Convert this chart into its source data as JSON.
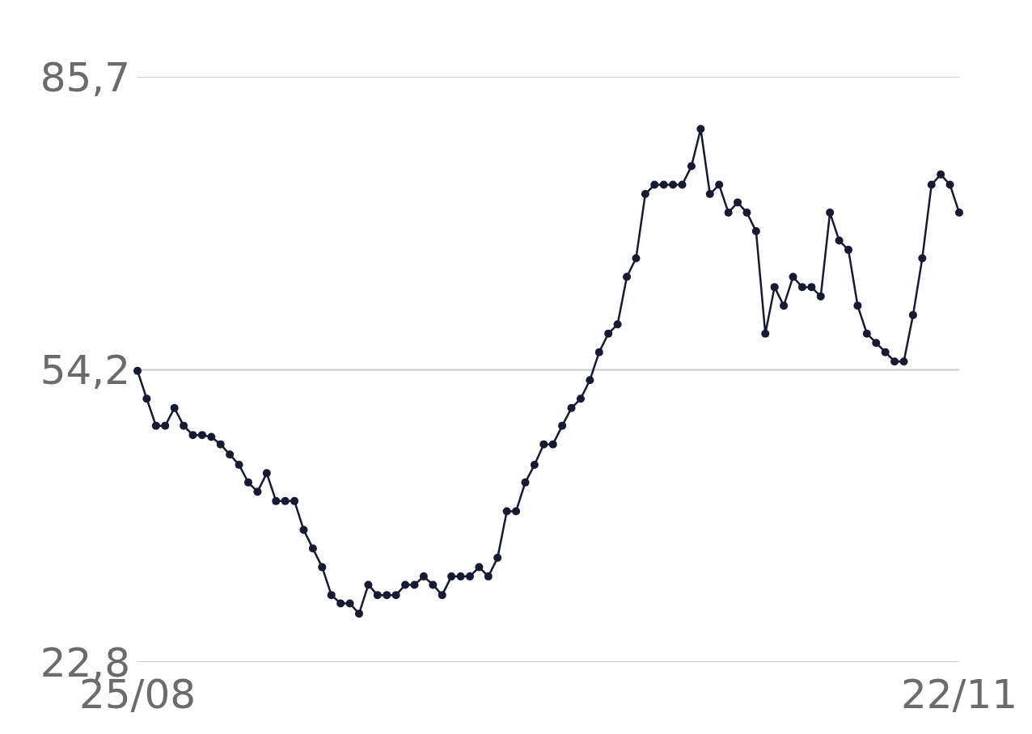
{
  "chart_data": {
    "type": "line",
    "color": "#161b33",
    "marker": "circle",
    "grid": "y",
    "x": [
      "--08-25",
      "--08-26",
      "--08-27",
      "--08-28",
      "--08-29",
      "--08-30",
      "--08-31",
      "--09-01",
      "--09-02",
      "--09-03",
      "--09-04",
      "--09-05",
      "--09-06",
      "--09-07",
      "--09-08",
      "--09-09",
      "--09-10",
      "--09-11",
      "--09-12",
      "--09-13",
      "--09-14",
      "--09-15",
      "--09-16",
      "--09-17",
      "--09-18",
      "--09-19",
      "--09-20",
      "--09-21",
      "--09-22",
      "--09-23",
      "--09-24",
      "--09-25",
      "--09-26",
      "--09-27",
      "--09-28",
      "--09-29",
      "--09-30",
      "--10-01",
      "--10-02",
      "--10-03",
      "--10-04",
      "--10-05",
      "--10-06",
      "--10-07",
      "--10-08",
      "--10-09",
      "--10-10",
      "--10-11",
      "--10-12",
      "--10-13",
      "--10-14",
      "--10-15",
      "--10-16",
      "--10-17",
      "--10-18",
      "--10-19",
      "--10-20",
      "--10-21",
      "--10-22",
      "--10-23",
      "--10-24",
      "--10-25",
      "--10-26",
      "--10-27",
      "--10-28",
      "--10-29",
      "--10-30",
      "--10-31",
      "--11-01",
      "--11-02",
      "--11-03",
      "--11-04",
      "--11-05",
      "--11-06",
      "--11-07",
      "--11-08",
      "--11-09",
      "--11-10",
      "--11-11",
      "--11-12",
      "--11-13",
      "--11-14",
      "--11-15",
      "--11-16",
      "--11-17",
      "--11-18",
      "--11-19",
      "--11-20",
      "--11-21",
      "--11-22"
    ],
    "values": [
      54.1,
      51.1,
      48.2,
      48.2,
      50.1,
      48.2,
      47.2,
      47.2,
      47.0,
      46.2,
      45.1,
      44.0,
      42.1,
      41.1,
      43.1,
      40.1,
      40.1,
      40.1,
      37.0,
      35.0,
      33.0,
      30.0,
      29.1,
      29.1,
      28.0,
      31.1,
      30.0,
      30.0,
      30.0,
      31.1,
      31.1,
      32.0,
      31.1,
      30.0,
      32.0,
      32.0,
      32.0,
      33.0,
      32.0,
      34.0,
      39.0,
      39.0,
      42.1,
      44.0,
      46.2,
      46.2,
      48.2,
      50.1,
      51.1,
      53.1,
      56.1,
      58.1,
      59.1,
      64.2,
      66.2,
      73.1,
      74.1,
      74.1,
      74.1,
      74.1,
      76.1,
      80.1,
      73.1,
      74.1,
      71.1,
      72.2,
      71.1,
      69.1,
      58.1,
      63.1,
      61.1,
      64.2,
      63.1,
      63.1,
      62.1,
      71.1,
      68.1,
      67.1,
      61.1,
      58.1,
      57.1,
      56.1,
      55.1,
      55.1,
      60.1,
      66.2,
      74.1,
      75.2,
      74.1,
      71.1
    ],
    "xlim": [
      "--08-25",
      "--11-22"
    ],
    "xticks": [
      {
        "value": "--08-25",
        "label": "25/08"
      },
      {
        "value": "--11-22",
        "label": "22/11"
      }
    ],
    "ylim": [
      22.8,
      85.7
    ],
    "yticks": [
      {
        "value": 22.8,
        "label": "22,8"
      },
      {
        "value": 54.2,
        "label": "54,2"
      },
      {
        "value": 85.7,
        "label": "85,7"
      }
    ]
  }
}
